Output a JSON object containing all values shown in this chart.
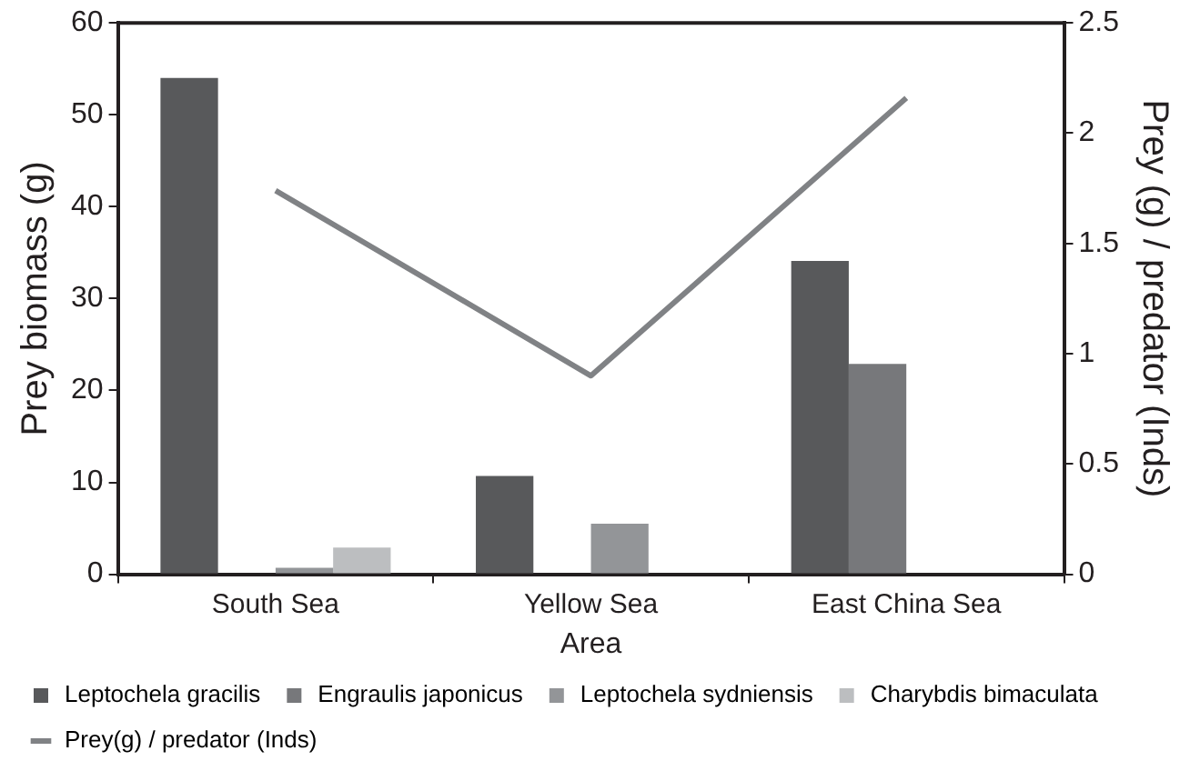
{
  "chart_data": {
    "type": "bar",
    "xlabel": "Area",
    "ylabel": "Prey biomass (g)",
    "y2label": "Prey (g) / predator (Inds)",
    "categories": [
      "South Sea",
      "Yellow Sea",
      "East China Sea"
    ],
    "series": [
      {
        "name": "Leptochela gracilis",
        "color": "#58595b",
        "values": [
          54,
          10.7,
          34.1
        ]
      },
      {
        "name": "Engraulis japonicus",
        "color": "#77787b",
        "values": [
          0,
          0,
          22.9
        ]
      },
      {
        "name": "Leptochela sydniensis",
        "color": "#939598",
        "values": [
          0.7,
          5.5,
          0
        ]
      },
      {
        "name": "Charybdis bimaculata",
        "color": "#bcbec0",
        "values": [
          2.9,
          0,
          0
        ]
      },
      {
        "name": "Prey(g) / predator (Inds)",
        "type": "line",
        "axis": "y2",
        "color": "#808285",
        "values": [
          1.74,
          0.9,
          2.16
        ]
      }
    ],
    "ylim": [
      0,
      60
    ],
    "yticks": [
      0,
      10,
      20,
      30,
      40,
      50,
      60
    ],
    "y2lim": [
      0,
      2.5
    ],
    "y2ticks": [
      0,
      0.5,
      1,
      1.5,
      2,
      2.5
    ],
    "grid": false,
    "legend": "bottom",
    "marker": "none"
  }
}
